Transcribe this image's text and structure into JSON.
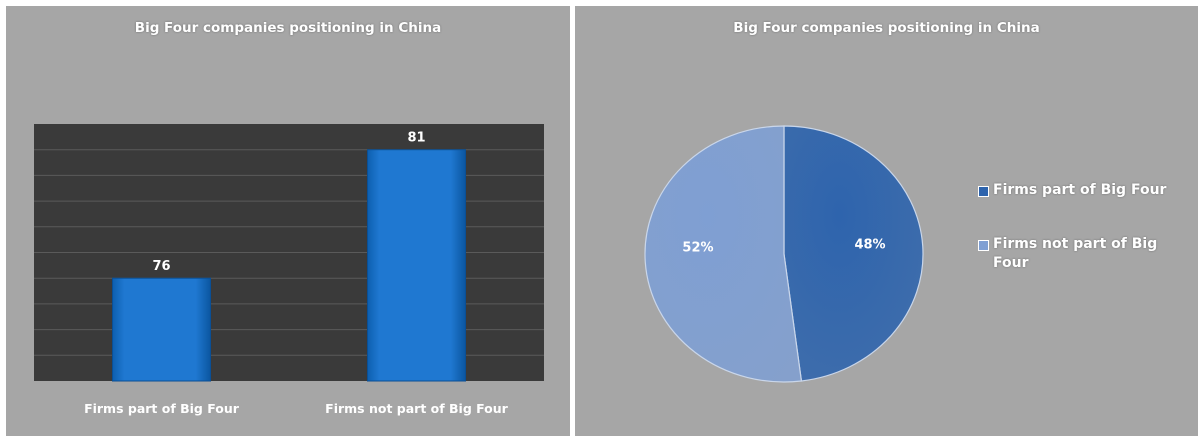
{
  "chart_data": [
    {
      "type": "bar",
      "title": "Big Four companies positioning in China",
      "categories": [
        "Firms part of Big Four",
        "Firms not part of  Big Four"
      ],
      "values": [
        76,
        81
      ],
      "data_labels": [
        "76",
        "81"
      ],
      "xlabel": "",
      "ylabel": "",
      "ylim": [
        72,
        82
      ],
      "grid": true,
      "plot_background": "#3a3a3a",
      "bar_color": "#1f78d1"
    },
    {
      "type": "pie",
      "title": "Big Four companies positioning in China",
      "labels": [
        "Firms part of Big Four",
        "Firms not part of Big Four"
      ],
      "values": [
        48,
        52
      ],
      "data_labels": [
        "48%",
        "52%"
      ],
      "colors": [
        "#2e64ad",
        "#7f9fd3"
      ],
      "legend": "right"
    }
  ]
}
